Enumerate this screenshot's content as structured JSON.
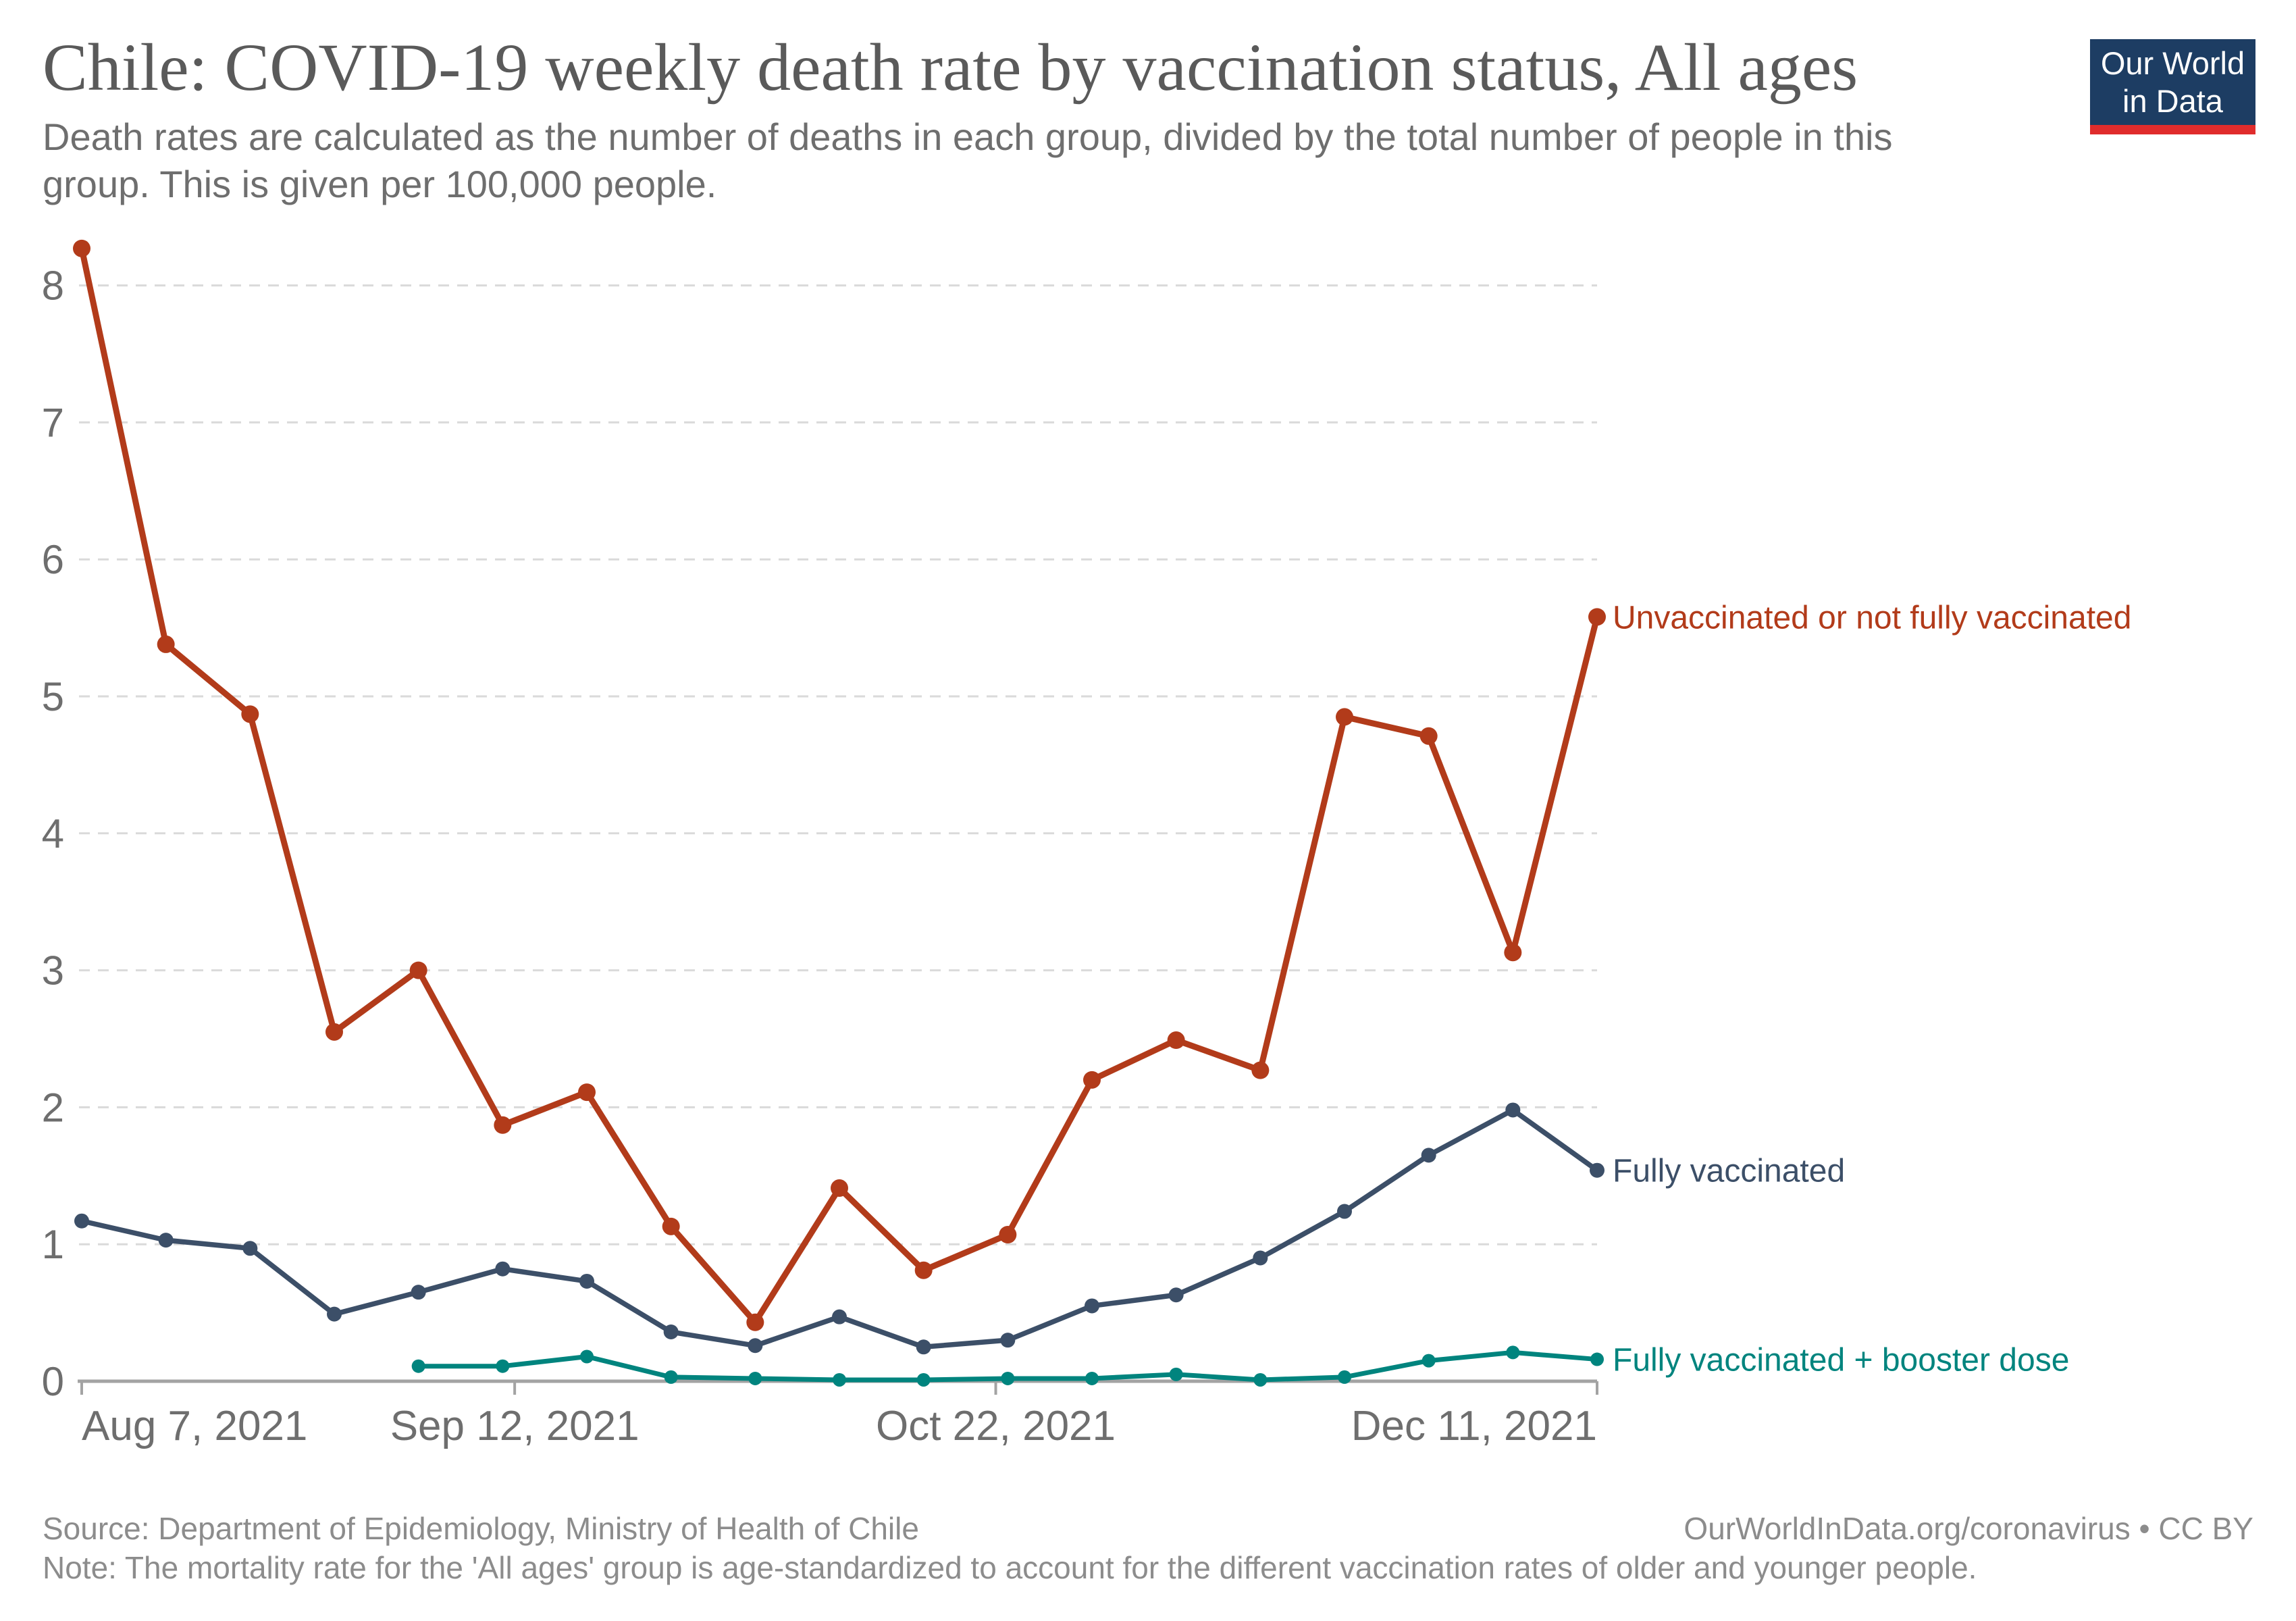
{
  "header": {
    "title": "Chile: COVID-19 weekly death rate by vaccination status, All ages",
    "subtitle": "Death rates are calculated as the number of deaths in each group, divided by the total number of people in this\ngroup. This is given per 100,000 people."
  },
  "logo": {
    "line1": "Our World",
    "line2": "in Data",
    "background_color": "#1d3d63",
    "stripe_color": "#e02c2c"
  },
  "chart_data": {
    "type": "line",
    "title": "Chile: COVID-19 weekly death rate by vaccination status, All ages",
    "xlabel": "",
    "ylabel": "",
    "ylim": [
      0,
      8.6
    ],
    "grid": "horizontal-dashed",
    "legend_position": "right-of-line-ends",
    "x_start_date": "Aug 7, 2021",
    "x_end_date": "Dec 11, 2021",
    "x_days_per_point": 7,
    "x_total_days": 126,
    "x_ticks": [
      {
        "label": "Aug 7, 2021",
        "day": 0,
        "align": "start"
      },
      {
        "label": "Sep 12, 2021",
        "day": 36,
        "align": "middle"
      },
      {
        "label": "Oct 22, 2021",
        "day": 76,
        "align": "middle"
      },
      {
        "label": "Dec 11, 2021",
        "day": 126,
        "align": "end"
      }
    ],
    "y_ticks": [
      0,
      1,
      2,
      3,
      4,
      5,
      6,
      7,
      8
    ],
    "series": [
      {
        "name": "Unvaccinated or not fully vaccinated",
        "color": "#b23b1a",
        "values": [
          8.27,
          5.38,
          4.87,
          2.55,
          3.0,
          1.87,
          2.11,
          1.13,
          0.43,
          1.41,
          0.81,
          1.07,
          2.2,
          2.49,
          2.27,
          4.85,
          4.71,
          3.13,
          5.58
        ]
      },
      {
        "name": "Fully vaccinated",
        "color": "#3c4f68",
        "values": [
          1.17,
          1.03,
          0.97,
          0.49,
          0.65,
          0.82,
          0.73,
          0.36,
          0.26,
          0.47,
          0.25,
          0.3,
          0.55,
          0.63,
          0.9,
          1.24,
          1.65,
          1.98,
          1.54
        ]
      },
      {
        "name": "Fully vaccinated + booster dose",
        "color": "#00847e",
        "values": [
          null,
          null,
          null,
          null,
          0.11,
          0.11,
          0.18,
          0.03,
          0.02,
          0.01,
          0.01,
          0.02,
          0.02,
          0.05,
          0.01,
          0.03,
          0.15,
          0.21,
          0.16
        ]
      }
    ],
    "colors": {
      "axis": "#a3a3a3",
      "gridline": "#dadada",
      "tick_label": "#6e6e6e"
    }
  },
  "footer": {
    "source": "Source: Department of Epidemiology, Ministry of Health of Chile",
    "credit": "OurWorldInData.org/coronavirus • CC BY",
    "note": "Note: The mortality rate for the 'All ages' group is age-standardized to account for the different vaccination rates of older and younger people."
  }
}
